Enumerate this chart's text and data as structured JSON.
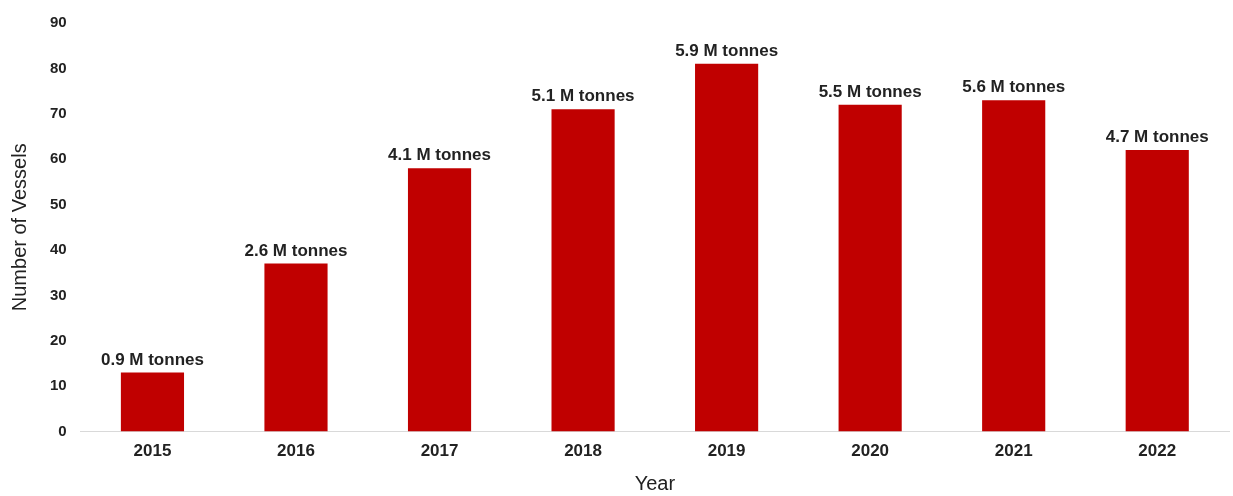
{
  "chart_data": {
    "type": "bar",
    "xlabel": "Year",
    "ylabel": "Number of Vessels",
    "categories": [
      "2015",
      "2016",
      "2017",
      "2018",
      "2019",
      "2020",
      "2021",
      "2022"
    ],
    "values": [
      13,
      37,
      58,
      71,
      81,
      72,
      73,
      62
    ],
    "color": "#c00000",
    "annotations": [
      {
        "text": "0.9 M tonnes",
        "x": "2015",
        "y": 13
      },
      {
        "text": "2.6 M tonnes",
        "x": "2016",
        "y": 37
      },
      {
        "text": "4.1 M tonnes",
        "x": "2017",
        "y": 58
      },
      {
        "text": "5.1 M tonnes",
        "x": "2018",
        "y": 71
      },
      {
        "text": "5.9 M tonnes",
        "x": "2019",
        "y": 81
      },
      {
        "text": "5.5 M tonnes",
        "x": "2020",
        "y": 72
      },
      {
        "text": "5.6 M tonnes",
        "x": "2021",
        "y": 73
      },
      {
        "text": "4.7 M tonnes",
        "x": "2022",
        "y": 62
      }
    ],
    "ylim": [
      0,
      90
    ],
    "yticks": [
      0,
      10,
      20,
      30,
      40,
      50,
      60,
      70,
      80,
      90
    ],
    "grid": false,
    "legend": false
  }
}
